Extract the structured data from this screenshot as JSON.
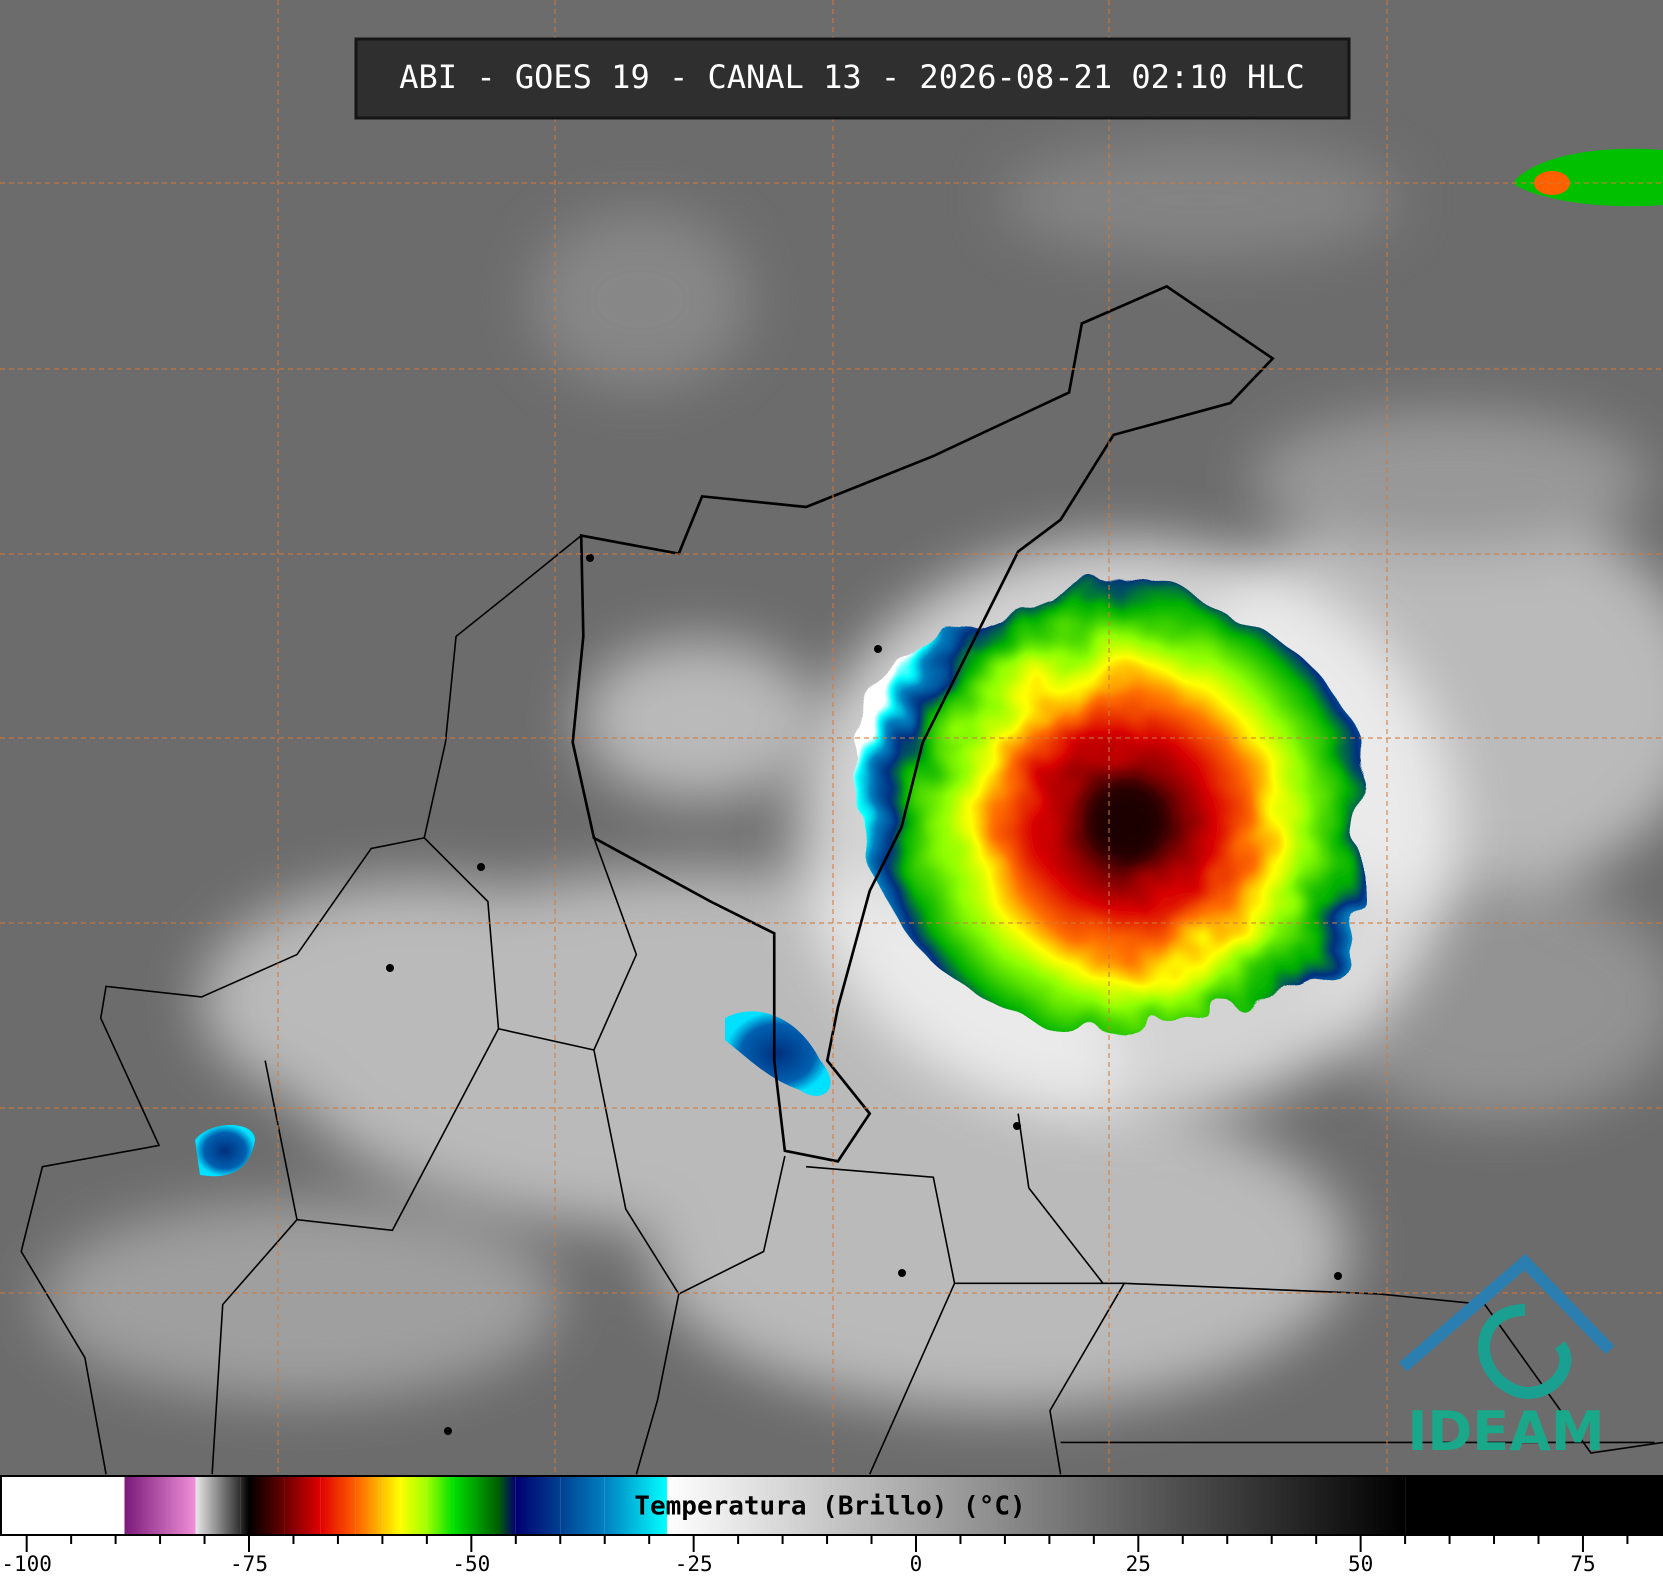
{
  "header": {
    "title": "ABI - GOES 19 - CANAL 13 - 2026-08-21 02:10 HLC"
  },
  "logo": {
    "text": "IDEAM"
  },
  "colorbar": {
    "label": "Temperatura (Brillo) (°C)",
    "range": [
      -103,
      84
    ],
    "ticks": [
      -100,
      -75,
      -50,
      -25,
      0,
      25,
      50,
      75
    ],
    "minor_ticks": [
      -95,
      -90,
      -85,
      -80,
      -70,
      -65,
      -60,
      -55,
      -45,
      -40,
      -35,
      -30,
      -20,
      -15,
      -10,
      -5,
      5,
      10,
      15,
      20,
      30,
      35,
      40,
      45,
      55,
      60,
      65,
      70,
      80
    ],
    "colorscale": [
      [
        -103,
        "#ffffff"
      ],
      [
        -89,
        "#ffffff"
      ],
      [
        -89,
        "#7a1a7a"
      ],
      [
        -81,
        "#f090d8"
      ],
      [
        -81,
        "#e8e8e8"
      ],
      [
        -76,
        "#303030"
      ],
      [
        -75,
        "#000000"
      ],
      [
        -71,
        "#6a0000"
      ],
      [
        -67,
        "#e00000"
      ],
      [
        -63,
        "#ff6000"
      ],
      [
        -60,
        "#ffc000"
      ],
      [
        -58,
        "#ffff00"
      ],
      [
        -55,
        "#a0ff00"
      ],
      [
        -52,
        "#00e000"
      ],
      [
        -47,
        "#006000"
      ],
      [
        -45,
        "#000070"
      ],
      [
        -40,
        "#004090"
      ],
      [
        -35,
        "#0080c0"
      ],
      [
        -28,
        "#00ffff"
      ],
      [
        -28,
        "#ffffff"
      ],
      [
        55,
        "#000000"
      ],
      [
        84,
        "#000000"
      ]
    ]
  }
}
